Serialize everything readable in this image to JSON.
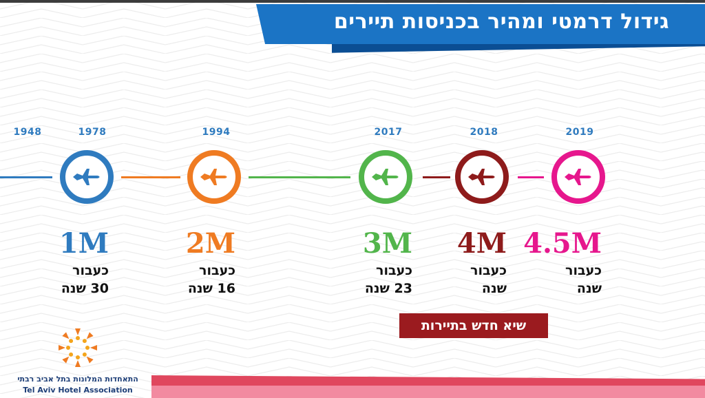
{
  "title": "גידול דרמטי ומהיר בכניסות תיירים",
  "colors": {
    "blue": "#2f7bbf",
    "orange": "#ef7b22",
    "green": "#52b54b",
    "darkred": "#8e1b1b",
    "magenta": "#e6178d",
    "title_bg": "#1b74c5",
    "badge_bg": "#9b1b1f"
  },
  "milestones": [
    {
      "year": "1948",
      "icon": "airplane-icon"
    },
    {
      "year": "1978",
      "value": "1M",
      "label1": "כעבור",
      "label2": "30 שנה",
      "color": "#2f7bbf",
      "icon": "airplane-icon"
    },
    {
      "year": "1994",
      "value": "2M",
      "label1": "כעבור",
      "label2": "16 שנה",
      "color": "#ef7b22",
      "icon": "airplane-icon"
    },
    {
      "year": "2017",
      "value": "3M",
      "label1": "כעבור",
      "label2": "23 שנה",
      "color": "#52b54b",
      "icon": "airplane-icon"
    },
    {
      "year": "2018",
      "value": "4M",
      "label1": "כעבור",
      "label2": "שנה",
      "color": "#8e1b1b",
      "icon": "airplane-icon"
    },
    {
      "year": "2019",
      "value": "4.5M",
      "label1": "כעבור",
      "label2": "שנה",
      "color": "#e6178d",
      "icon": "airplane-icon"
    }
  ],
  "badge": "שיא חדש בתיירות",
  "logo": {
    "hebrew": "התאחדות המלונות בתל אביב רבתי",
    "english": "Tel Aviv Hotel Association",
    "icon": "sun-figures-logo-icon"
  }
}
